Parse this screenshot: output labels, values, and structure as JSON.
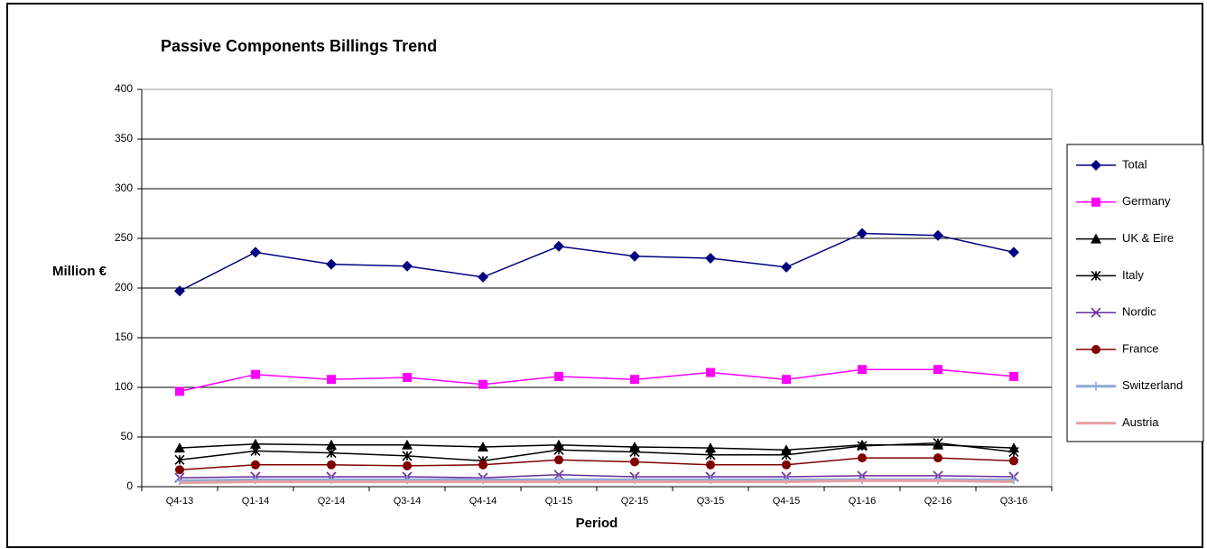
{
  "chart_data": {
    "type": "line",
    "title": "Passive Components Billings Trend",
    "xlabel": "Period",
    "ylabel": "Million €",
    "categories": [
      "Q4-13",
      "Q1-14",
      "Q2-14",
      "Q3-14",
      "Q4-14",
      "Q1-15",
      "Q2-15",
      "Q3-15",
      "Q4-15",
      "Q1-16",
      "Q2-16",
      "Q3-16"
    ],
    "ylim": [
      0,
      400
    ],
    "yticks": [
      0,
      50,
      100,
      150,
      200,
      250,
      300,
      350,
      400
    ],
    "grid": true,
    "legend": "right",
    "series": [
      {
        "name": "Total",
        "color": "#000080",
        "marker": "diamond",
        "values": [
          197,
          236,
          224,
          222,
          211,
          242,
          232,
          230,
          221,
          255,
          253,
          236
        ]
      },
      {
        "name": "Germany",
        "color": "#ff00ff",
        "marker": "square",
        "values": [
          96,
          113,
          108,
          110,
          103,
          111,
          108,
          115,
          108,
          118,
          118,
          111
        ]
      },
      {
        "name": "UK & Eire",
        "color": "#000000",
        "marker": "triangle",
        "values": [
          39,
          43,
          42,
          42,
          40,
          42,
          40,
          39,
          37,
          42,
          42,
          39
        ]
      },
      {
        "name": "Italy",
        "color": "#000000",
        "marker": "star",
        "values": [
          27,
          36,
          34,
          31,
          26,
          37,
          35,
          32,
          32,
          41,
          44,
          35
        ]
      },
      {
        "name": "Nordic",
        "color": "#6a2c9a",
        "marker": "x",
        "values": [
          9,
          10,
          10,
          10,
          9,
          12,
          10,
          10,
          10,
          11,
          11,
          10
        ]
      },
      {
        "name": "France",
        "color": "#800000",
        "marker": "circle",
        "values": [
          17,
          22,
          22,
          21,
          22,
          27,
          25,
          22,
          22,
          29,
          29,
          26
        ]
      },
      {
        "name": "Switzerland",
        "color": "#8fa9d6",
        "marker": "plus",
        "values": [
          6,
          7,
          7,
          7,
          7,
          7,
          7,
          7,
          7,
          7,
          7,
          7
        ]
      },
      {
        "name": "Austria",
        "color": "#e3a1a1",
        "marker": "none",
        "values": [
          4,
          5,
          5,
          5,
          5,
          5,
          5,
          5,
          5,
          6,
          6,
          5
        ]
      }
    ]
  }
}
